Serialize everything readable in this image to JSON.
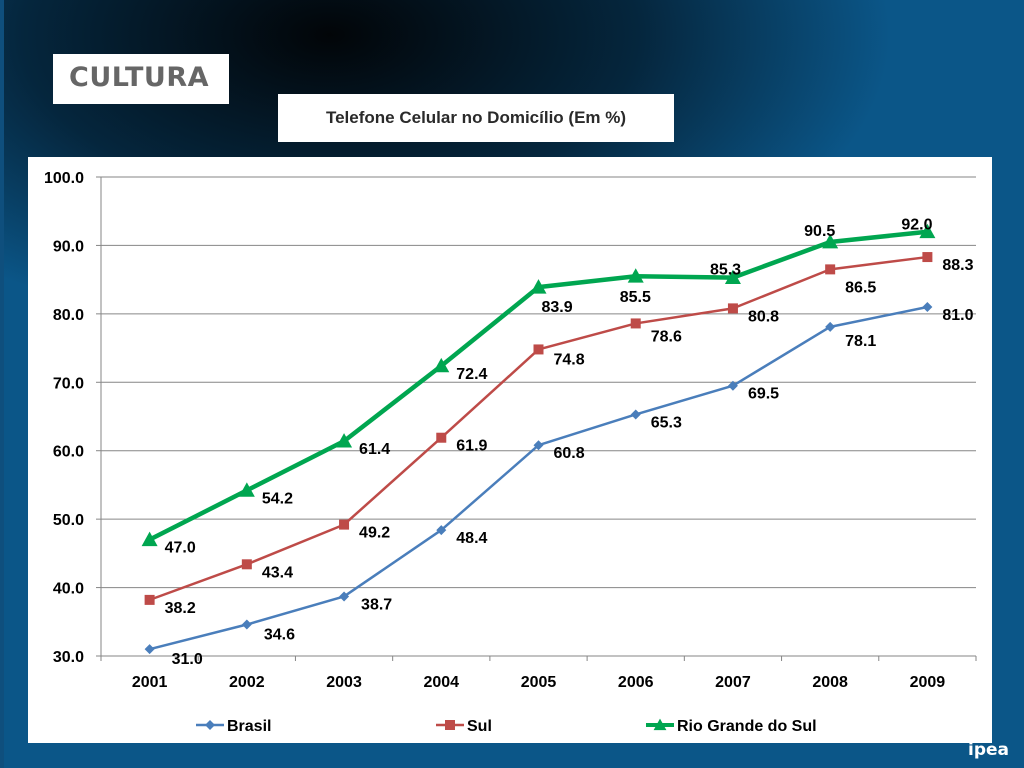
{
  "header": {
    "section_label": "CULTURA",
    "logo_text": "ipea"
  },
  "chart_data": {
    "type": "line",
    "title": "Telefone Celular no Domicílio (Em %)",
    "xlabel": "",
    "ylabel": "",
    "categories": [
      "2001",
      "2002",
      "2003",
      "2004",
      "2005",
      "2006",
      "2007",
      "2008",
      "2009"
    ],
    "ylim": [
      30.0,
      100.0
    ],
    "yticks": [
      "100.0",
      "90.0",
      "80.0",
      "70.0",
      "60.0",
      "50.0",
      "40.0",
      "30.0"
    ],
    "grid": true,
    "legend_position": "bottom",
    "series": [
      {
        "name": "Brasil",
        "color": "#4a7ebb",
        "marker": "diamond",
        "values": [
          31.0,
          34.6,
          38.7,
          48.4,
          60.8,
          65.3,
          69.5,
          78.1,
          81.0
        ],
        "labels": [
          "31.0",
          "34.6",
          "38.7",
          "48.4",
          "60.8",
          "65.3",
          "69.5",
          "78.1",
          "81.0"
        ]
      },
      {
        "name": "Sul",
        "color": "#be4b48",
        "marker": "square",
        "values": [
          38.2,
          43.4,
          49.2,
          61.9,
          74.8,
          78.6,
          80.8,
          86.5,
          88.3
        ],
        "labels": [
          "38.2",
          "43.4",
          "49.2",
          "61.9",
          "74.8",
          "78.6",
          "80.8",
          "86.5",
          "88.3"
        ]
      },
      {
        "name": "Rio Grande do Sul",
        "color": "#00a650",
        "marker": "triangle",
        "values": [
          47.0,
          54.2,
          61.4,
          72.4,
          83.9,
          85.5,
          85.3,
          90.5,
          92.0
        ],
        "labels": [
          "47.0",
          "54.2",
          "61.4",
          "72.4",
          "83.9",
          "85.5",
          "85.3",
          "90.5",
          "92.0"
        ]
      }
    ]
  }
}
